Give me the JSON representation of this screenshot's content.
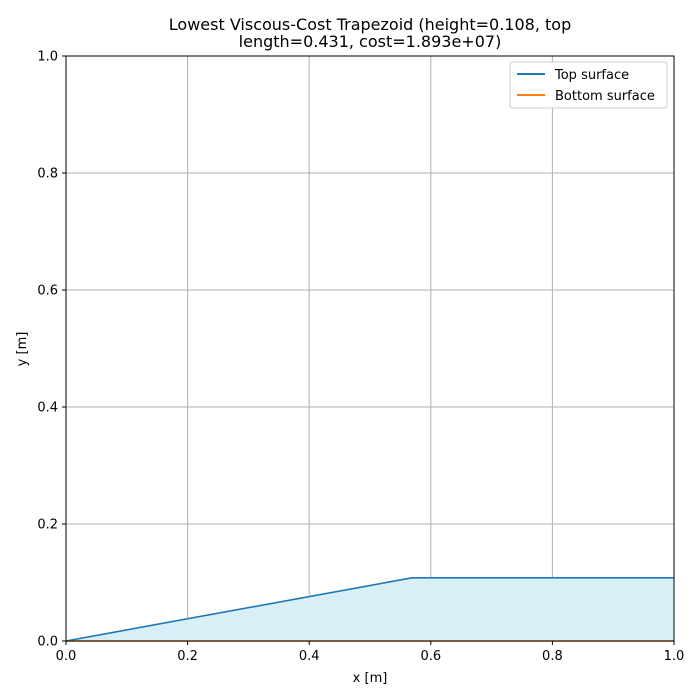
{
  "chart_data": {
    "type": "area",
    "title_lines": [
      "Lowest Viscous-Cost Trapezoid (height=0.108, top",
      "length=0.431, cost=1.893e+07)"
    ],
    "xlabel": "x [m]",
    "ylabel": "y [m]",
    "xlim": [
      0,
      1.0
    ],
    "ylim": [
      0,
      1.0
    ],
    "x_ticks": [
      "0.0",
      "0.2",
      "0.4",
      "0.6",
      "0.8",
      "1.0"
    ],
    "y_ticks": [
      "0.0",
      "0.2",
      "0.4",
      "0.6",
      "0.8",
      "1.0"
    ],
    "grid": true,
    "legend_position": "top-right",
    "fill_color": "#d9eff8",
    "series": [
      {
        "name": "Top surface",
        "color": "#1f77b4",
        "x": [
          0.0,
          0.569,
          1.0
        ],
        "y": [
          0.0,
          0.108,
          0.108
        ]
      },
      {
        "name": "Bottom surface",
        "color": "#ff7f0e",
        "x": [
          0.0,
          1.0
        ],
        "y": [
          0.0,
          0.0
        ]
      }
    ]
  }
}
